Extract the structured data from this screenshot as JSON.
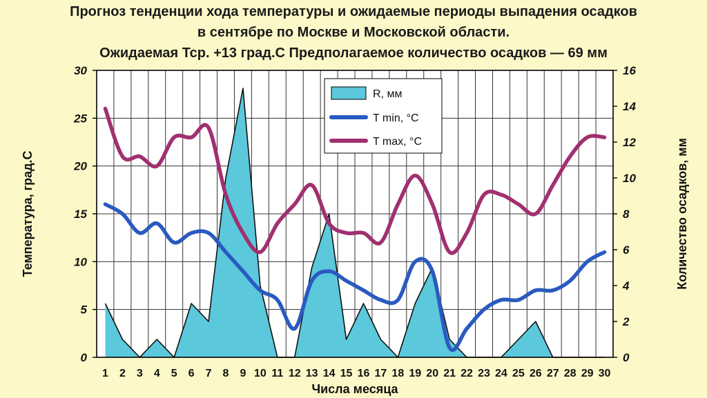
{
  "chart_data": {
    "type": "bar",
    "title_lines": [
      "Прогноз тенденции хода температуры и ожидаемые периоды выпадения осадков",
      "в сентябре по Москве и Московской области.",
      "Ожидаемая Тср. +13 град.С Предполагаемое количество осадков — 69 мм"
    ],
    "xlabel": "Числа месяца",
    "ylabel_left": "Температура, град.С",
    "ylabel_right": "Количество осадков, мм",
    "x": [
      1,
      2,
      3,
      4,
      5,
      6,
      7,
      8,
      9,
      10,
      11,
      12,
      13,
      14,
      15,
      16,
      17,
      18,
      19,
      20,
      21,
      22,
      23,
      24,
      25,
      26,
      27,
      28,
      29,
      30
    ],
    "xlim": [
      0.5,
      30.5
    ],
    "ylim_left": [
      0,
      30
    ],
    "ylim_right": [
      0,
      16
    ],
    "yticks_left": [
      0,
      5,
      10,
      15,
      20,
      25,
      30
    ],
    "yticks_right": [
      0,
      2,
      4,
      6,
      8,
      10,
      12,
      14,
      16
    ],
    "grid": true,
    "legend_position": "top-center",
    "series": [
      {
        "name": "R, мм",
        "kind": "area",
        "axis": "right",
        "color": "#5bc8dc",
        "x": [
          1,
          2,
          3,
          4,
          5,
          6,
          7,
          8,
          9,
          10,
          11,
          12,
          13,
          14,
          15,
          16,
          17,
          18,
          19,
          20,
          21,
          22,
          23,
          24,
          25,
          26,
          27,
          28,
          29,
          30
        ],
        "values": [
          3,
          1,
          0,
          1,
          0,
          3,
          2,
          10,
          15,
          4,
          0,
          0,
          5,
          8,
          1,
          3,
          1,
          0,
          3,
          5,
          1,
          0,
          0,
          0,
          1,
          2,
          0,
          0,
          0,
          0
        ]
      },
      {
        "name": "T min, °C",
        "kind": "line",
        "axis": "left",
        "color": "#2a5ac0",
        "x": [
          1,
          2,
          3,
          4,
          5,
          6,
          7,
          8,
          9,
          10,
          11,
          12,
          13,
          14,
          15,
          16,
          17,
          18,
          19,
          20,
          21,
          22,
          23,
          24,
          25,
          26,
          27,
          28,
          29,
          30
        ],
        "values": [
          16,
          15,
          13,
          14,
          12,
          13,
          13,
          11,
          9,
          7,
          6,
          3,
          8,
          9,
          8,
          7,
          6,
          6,
          10,
          9,
          1,
          3,
          5,
          6,
          6,
          7,
          7,
          8,
          10,
          11
        ]
      },
      {
        "name": "T max, °C",
        "kind": "line",
        "axis": "left",
        "color": "#a03070",
        "x": [
          1,
          2,
          3,
          4,
          5,
          6,
          7,
          8,
          9,
          10,
          11,
          12,
          13,
          14,
          15,
          16,
          17,
          18,
          19,
          20,
          21,
          22,
          23,
          24,
          25,
          26,
          27,
          28,
          29,
          30
        ],
        "values": [
          26,
          21,
          21,
          20,
          23,
          23,
          24,
          17,
          13,
          11,
          14,
          16,
          18,
          14,
          13,
          13,
          12,
          16,
          19,
          16,
          11,
          13,
          17,
          17,
          16,
          15,
          18,
          21,
          23,
          23
        ]
      }
    ]
  }
}
